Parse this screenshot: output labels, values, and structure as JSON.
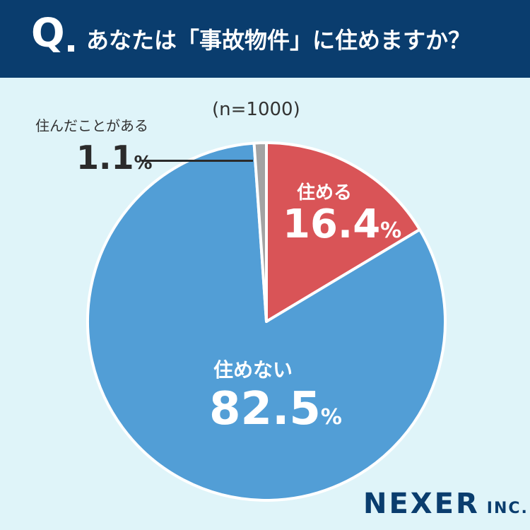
{
  "header": {
    "q_mark": "Q",
    "question": "あなたは「事故物件」に住めますか？"
  },
  "sample_size": "(n=1000)",
  "logo": {
    "main": "NEXER",
    "sub": "INC."
  },
  "colors": {
    "header_bg": "#0a3d6e",
    "background": "#dff4f9",
    "can_live": "#d95457",
    "cannot_live": "#529ed6",
    "have_lived": "#a3a3a3"
  },
  "chart_data": {
    "type": "pie",
    "title": "あなたは「事故物件」に住めますか？",
    "slices": [
      {
        "label": "住める",
        "value": 16.4,
        "pct_text": "16.4",
        "color": "#d95457"
      },
      {
        "label": "住めない",
        "value": 82.5,
        "pct_text": "82.5",
        "color": "#529ed6"
      },
      {
        "label": "住んだことがある",
        "value": 1.1,
        "pct_text": "1.1",
        "color": "#a3a3a3"
      }
    ],
    "unit": "%"
  }
}
